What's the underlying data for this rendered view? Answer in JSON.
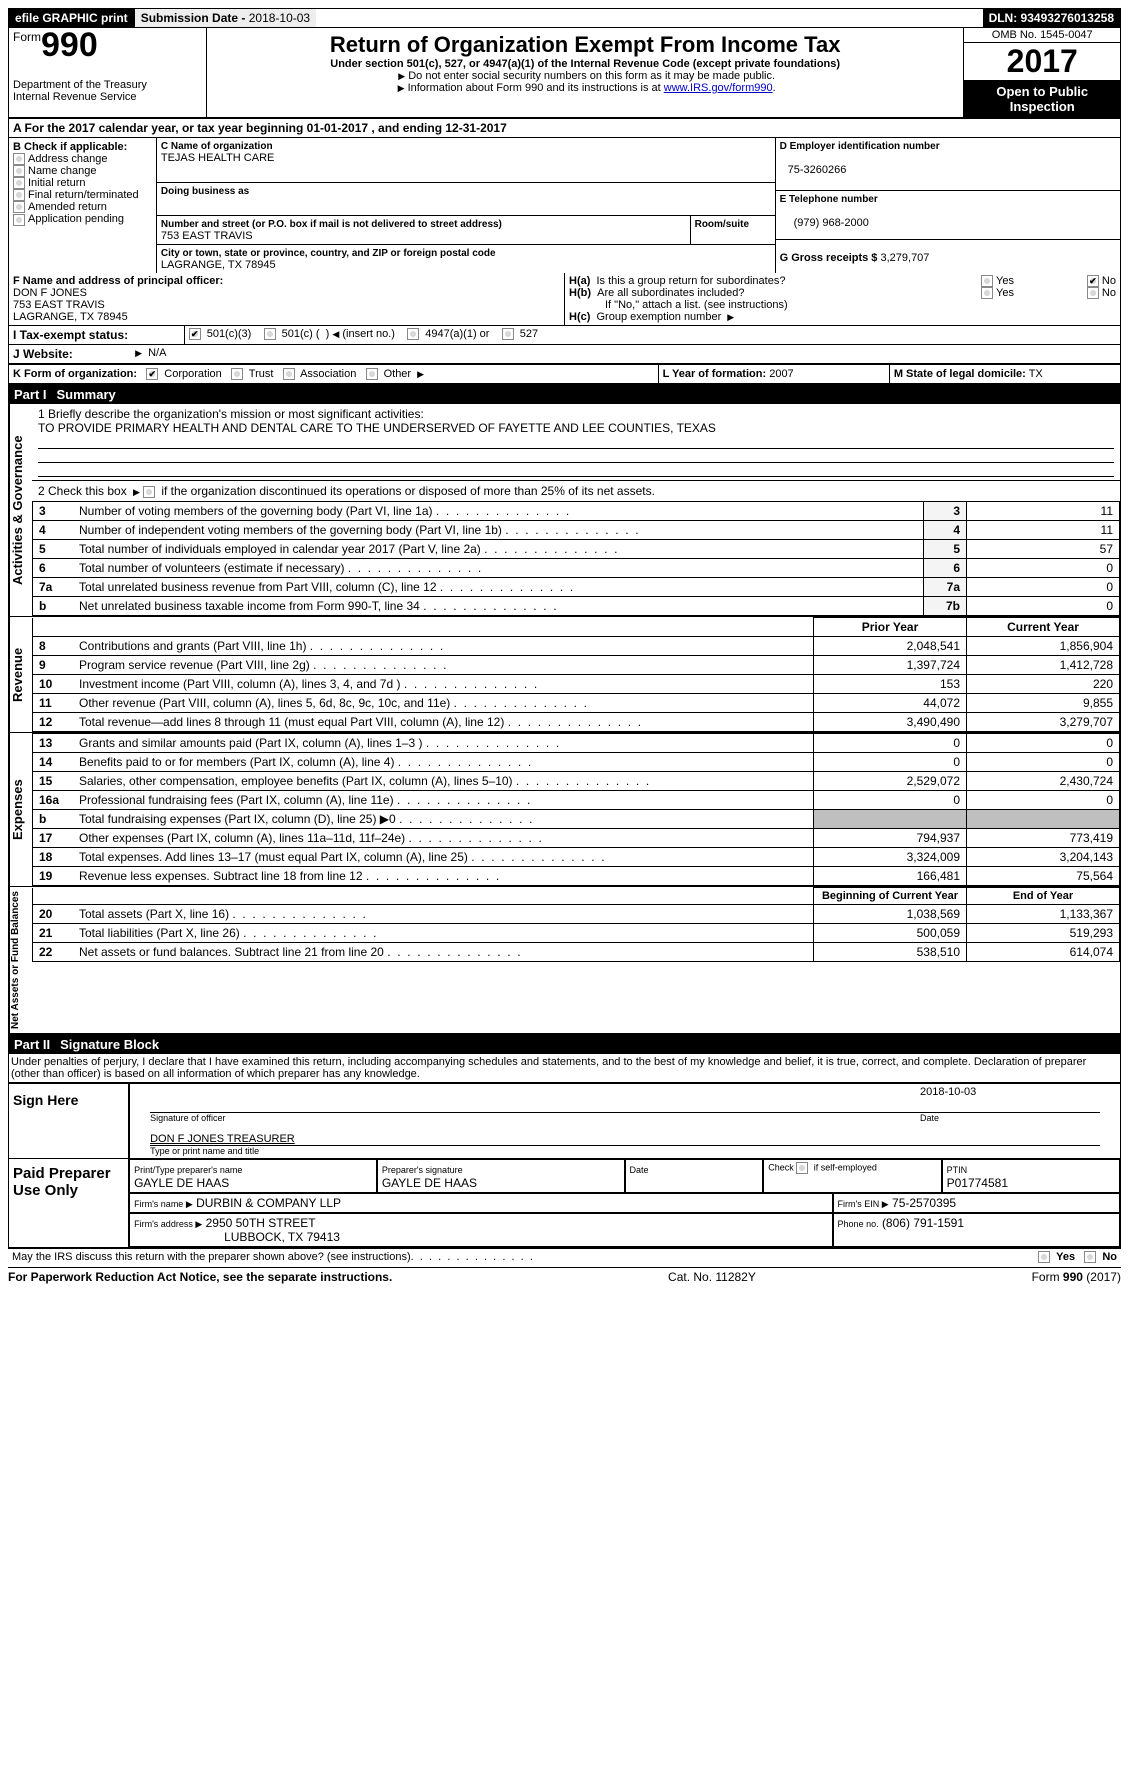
{
  "topbar": {
    "efile": "efile GRAPHIC print - DO NOT PROCESS",
    "efile_short": "efile GRAPHIC print",
    "submission_label": "Submission Date -",
    "submission_date": "2018-10-03",
    "dln": "DLN: 93493276013258"
  },
  "header": {
    "form_word": "Form",
    "form_no": "990",
    "dept1": "Department of the Treasury",
    "dept2": "Internal Revenue Service",
    "title": "Return of Organization Exempt From Income Tax",
    "subtitle": "Under section 501(c), 527, or 4947(a)(1) of the Internal Revenue Code (except private foundations)",
    "note1": "Do not enter social security numbers on this form as it may be made public.",
    "note2_pre": "Information about Form 990 and its instructions is at ",
    "note2_link": "www.IRS.gov/form990",
    "omb": "OMB No. 1545-0047",
    "year": "2017",
    "inspect": "Open to Public Inspection"
  },
  "lineA": "A  For the 2017 calendar year, or tax year beginning 01-01-2017   , and ending 12-31-2017",
  "B": {
    "label": "B Check if applicable:",
    "opts": [
      "Address change",
      "Name change",
      "Initial return",
      "Final return/terminated",
      "Amended return",
      "Application pending"
    ]
  },
  "C": {
    "name_label": "C Name of organization",
    "name": "TEJAS HEALTH CARE",
    "dba_label": "Doing business as",
    "street_label": "Number and street (or P.O. box if mail is not delivered to street address)",
    "room_label": "Room/suite",
    "street": "753 EAST TRAVIS",
    "city_label": "City or town, state or province, country, and ZIP or foreign postal code",
    "city": "LAGRANGE, TX  78945"
  },
  "D": {
    "label": "D Employer identification number",
    "val": "75-3260266"
  },
  "E": {
    "label": "E Telephone number",
    "val": "(979) 968-2000"
  },
  "G": {
    "label": "G Gross receipts $",
    "val": "3,279,707"
  },
  "F": {
    "label": "F  Name and address of principal officer:",
    "name": "DON F JONES",
    "street": "753 EAST TRAVIS",
    "city": "LAGRANGE, TX  78945"
  },
  "H": {
    "a": "H(a)  Is this a group return for subordinates?",
    "b": "H(b)  Are all subordinates included?",
    "bnote": "If \"No,\" attach a list. (see instructions)",
    "c": "H(c)  Group exemption number",
    "yes": "Yes",
    "no": "No"
  },
  "I": {
    "label": "I  Tax-exempt status:",
    "o1": "501(c)(3)",
    "o2": "501(c) (",
    "o2b": ") ",
    "o2c": "(insert no.)",
    "o3": "4947(a)(1) or",
    "o4": "527"
  },
  "J": {
    "label": "J  Website:",
    "val": " N/A"
  },
  "K": {
    "label": "K Form of organization:",
    "o1": "Corporation",
    "o2": "Trust",
    "o3": "Association",
    "o4": "Other"
  },
  "L": {
    "label": "L Year of formation:",
    "val": "2007"
  },
  "M": {
    "label": "M State of legal domicile:",
    "val": "TX"
  },
  "part1": {
    "num": "Part I",
    "title": "Summary"
  },
  "gov": {
    "tab": "Activities & Governance",
    "l1": "1  Briefly describe the organization's mission or most significant activities:",
    "l1val": "TO PROVIDE PRIMARY HEALTH AND DENTAL CARE TO THE UNDERSERVED OF FAYETTE AND LEE COUNTIES, TEXAS",
    "l2": "2  Check this box ",
    "l2b": " if the organization discontinued its operations or disposed of more than 25% of its net assets.",
    "rows": [
      {
        "n": "3",
        "t": "Number of voting members of the governing body (Part VI, line 1a)",
        "c": "3",
        "v": "11"
      },
      {
        "n": "4",
        "t": "Number of independent voting members of the governing body (Part VI, line 1b)",
        "c": "4",
        "v": "11"
      },
      {
        "n": "5",
        "t": "Total number of individuals employed in calendar year 2017 (Part V, line 2a)",
        "c": "5",
        "v": "57"
      },
      {
        "n": "6",
        "t": "Total number of volunteers (estimate if necessary)",
        "c": "6",
        "v": "0"
      },
      {
        "n": "7a",
        "t": "Total unrelated business revenue from Part VIII, column (C), line 12",
        "c": "7a",
        "v": "0"
      },
      {
        "n": "b",
        "t": "Net unrelated business taxable income from Form 990-T, line 34",
        "c": "7b",
        "v": "0"
      }
    ]
  },
  "rev": {
    "tab": "Revenue",
    "hdr_prior": "Prior Year",
    "hdr_curr": "Current Year",
    "rows": [
      {
        "n": "8",
        "t": "Contributions and grants (Part VIII, line 1h)",
        "p": "2,048,541",
        "c": "1,856,904"
      },
      {
        "n": "9",
        "t": "Program service revenue (Part VIII, line 2g)",
        "p": "1,397,724",
        "c": "1,412,728"
      },
      {
        "n": "10",
        "t": "Investment income (Part VIII, column (A), lines 3, 4, and 7d )",
        "p": "153",
        "c": "220"
      },
      {
        "n": "11",
        "t": "Other revenue (Part VIII, column (A), lines 5, 6d, 8c, 9c, 10c, and 11e)",
        "p": "44,072",
        "c": "9,855"
      },
      {
        "n": "12",
        "t": "Total revenue—add lines 8 through 11 (must equal Part VIII, column (A), line 12)",
        "p": "3,490,490",
        "c": "3,279,707"
      }
    ]
  },
  "exp": {
    "tab": "Expenses",
    "rows": [
      {
        "n": "13",
        "t": "Grants and similar amounts paid (Part IX, column (A), lines 1–3 )",
        "p": "0",
        "c": "0"
      },
      {
        "n": "14",
        "t": "Benefits paid to or for members (Part IX, column (A), line 4)",
        "p": "0",
        "c": "0"
      },
      {
        "n": "15",
        "t": "Salaries, other compensation, employee benefits (Part IX, column (A), lines 5–10)",
        "p": "2,529,072",
        "c": "2,430,724"
      },
      {
        "n": "16a",
        "t": "Professional fundraising fees (Part IX, column (A), line 11e)",
        "p": "0",
        "c": "0"
      },
      {
        "n": "b",
        "t": "Total fundraising expenses (Part IX, column (D), line 25) ▶0",
        "p": "GREY",
        "c": "GREY"
      },
      {
        "n": "17",
        "t": "Other expenses (Part IX, column (A), lines 11a–11d, 11f–24e)",
        "p": "794,937",
        "c": "773,419"
      },
      {
        "n": "18",
        "t": "Total expenses. Add lines 13–17 (must equal Part IX, column (A), line 25)",
        "p": "3,324,009",
        "c": "3,204,143"
      },
      {
        "n": "19",
        "t": "Revenue less expenses. Subtract line 18 from line 12",
        "p": "166,481",
        "c": "75,564"
      }
    ]
  },
  "net": {
    "tab": "Net Assets or Fund Balances",
    "hdr_beg": "Beginning of Current Year",
    "hdr_end": "End of Year",
    "rows": [
      {
        "n": "20",
        "t": "Total assets (Part X, line 16)",
        "p": "1,038,569",
        "c": "1,133,367"
      },
      {
        "n": "21",
        "t": "Total liabilities (Part X, line 26)",
        "p": "500,059",
        "c": "519,293"
      },
      {
        "n": "22",
        "t": "Net assets or fund balances. Subtract line 21 from line 20",
        "p": "538,510",
        "c": "614,074"
      }
    ]
  },
  "part2": {
    "num": "Part II",
    "title": "Signature Block"
  },
  "sig": {
    "perjury": "Under penalties of perjury, I declare that I have examined this return, including accompanying schedules and statements, and to the best of my knowledge and belief, it is true, correct, and complete. Declaration of preparer (other than officer) is based on all information of which preparer has any knowledge.",
    "sign_here": "Sign Here",
    "date": "2018-10-03",
    "sig_of_officer": "Signature of officer",
    "date_lbl": "Date",
    "officer_name": "DON F JONES TREASURER",
    "type_name": "Type or print name and title"
  },
  "prep": {
    "label": "Paid Preparer Use Only",
    "c1": "Print/Type preparer's name",
    "v1": "GAYLE DE HAAS",
    "c2": "Preparer's signature",
    "v2": "GAYLE DE HAAS",
    "c3": "Date",
    "c4a": "Check",
    "c4b": "if self-employed",
    "c5": "PTIN",
    "v5": "P01774581",
    "firm_name_l": "Firm's name    ▶",
    "firm_name": "DURBIN & COMPANY LLP",
    "firm_ein_l": "Firm's EIN ▶",
    "firm_ein": "75-2570395",
    "firm_addr_l": "Firm's address ▶",
    "firm_addr1": "2950 50TH STREET",
    "firm_addr2": "LUBBOCK, TX  79413",
    "phone_l": "Phone no.",
    "phone": "(806) 791-1591"
  },
  "discuss": {
    "q": "May the IRS discuss this return with the preparer shown above? (see instructions)",
    "yes": "Yes",
    "no": "No"
  },
  "footer": {
    "left": "For Paperwork Reduction Act Notice, see the separate instructions.",
    "mid": "Cat. No. 11282Y",
    "right": "Form 990 (2017)"
  }
}
